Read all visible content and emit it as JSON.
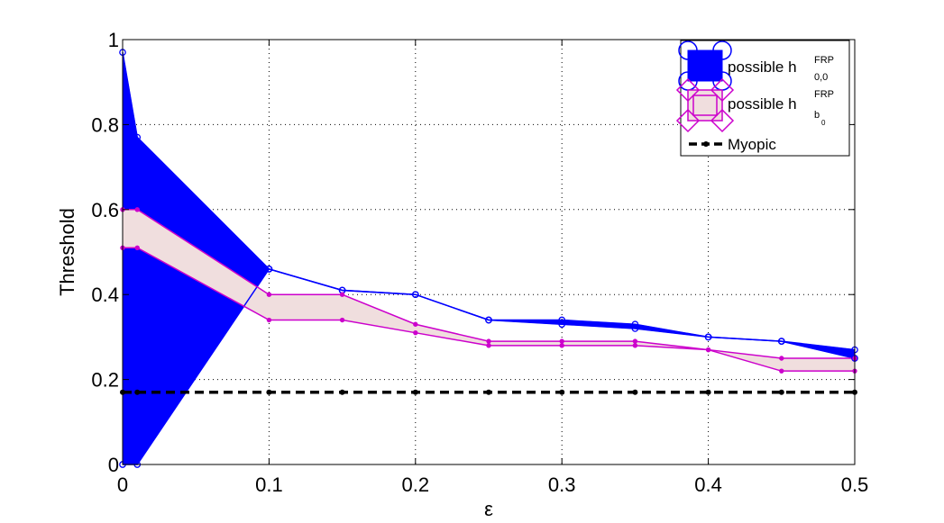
{
  "chart_data": {
    "type": "line",
    "title": "",
    "xlabel": "ε",
    "ylabel": "Threshold",
    "xlim": [
      0,
      0.5
    ],
    "ylim": [
      0,
      1
    ],
    "xticks": [
      "0",
      "0.1",
      "0.2",
      "0.3",
      "0.4",
      "0.5"
    ],
    "yticks": [
      "0",
      "0.2",
      "0.4",
      "0.6",
      "0.8",
      "1"
    ],
    "grid": true,
    "legend_position": "top-right",
    "legend": [
      {
        "label": "possible h",
        "sup": "FRP",
        "sub": "0,0",
        "color": "#0000ff",
        "marker": "circle"
      },
      {
        "label": "possible h",
        "sup": "FRP",
        "sub": "b",
        "subsub": "0",
        "color": "#cc00cc",
        "fill": "#f0dede",
        "marker": "diamond-square"
      },
      {
        "label": "Myopic",
        "color": "#000000",
        "style": "dashed"
      }
    ],
    "series": [
      {
        "name": "possible h^FRP_0,0",
        "color": "#0000ff",
        "x": [
          0,
          0.01,
          0.1,
          0.15,
          0.2,
          0.25,
          0.3,
          0.35,
          0.4,
          0.45,
          0.5
        ],
        "upper": [
          0.97,
          0.77,
          0.46,
          0.41,
          0.4,
          0.34,
          0.34,
          0.33,
          0.3,
          0.29,
          0.27
        ],
        "lower": [
          0.0,
          0.0,
          0.46,
          0.41,
          0.4,
          0.34,
          0.33,
          0.32,
          0.3,
          0.29,
          0.25
        ]
      },
      {
        "name": "possible h^FRP_b0",
        "color": "#cc00cc",
        "fill": "#f0dede",
        "x": [
          0,
          0.01,
          0.1,
          0.15,
          0.2,
          0.25,
          0.3,
          0.35,
          0.4,
          0.45,
          0.5
        ],
        "upper": [
          0.6,
          0.6,
          0.4,
          0.4,
          0.33,
          0.29,
          0.29,
          0.29,
          0.27,
          0.25,
          0.25
        ],
        "lower": [
          0.51,
          0.51,
          0.34,
          0.34,
          0.31,
          0.28,
          0.28,
          0.28,
          0.27,
          0.22,
          0.22
        ]
      },
      {
        "name": "Myopic",
        "color": "#000000",
        "x": [
          0,
          0.01,
          0.1,
          0.15,
          0.2,
          0.25,
          0.3,
          0.35,
          0.4,
          0.45,
          0.5
        ],
        "values": [
          0.17,
          0.17,
          0.17,
          0.17,
          0.17,
          0.17,
          0.17,
          0.17,
          0.17,
          0.17,
          0.17
        ]
      }
    ]
  }
}
